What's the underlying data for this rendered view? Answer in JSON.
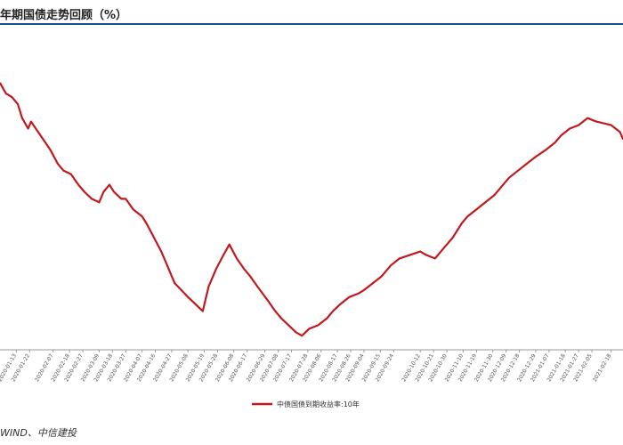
{
  "page": {
    "title": "年期国债走势回顾（%）",
    "source": "WIND、中信建投"
  },
  "chart_data": {
    "type": "line",
    "title": "年期国债走势回顾（%）",
    "legend": "中债国债到期收益率:10年",
    "legend_position": "bottom",
    "line_color": "#c0191e",
    "grid": false,
    "ylim": [
      2.4,
      3.3
    ],
    "x_ticks": [
      "2020-01-02",
      "2020-01-13",
      "2020-01-22",
      "2020-02-07",
      "2020-02-18",
      "2020-02-27",
      "2020-03-09",
      "2020-03-18",
      "2020-03-27",
      "2020-04-07",
      "2020-04-16",
      "2020-04-27",
      "2020-05-08",
      "2020-05-19",
      "2020-05-28",
      "2020-06-08",
      "2020-06-17",
      "2020-06-29",
      "2020-07-08",
      "2020-07-17",
      "2020-07-28",
      "2020-08-06",
      "2020-08-17",
      "2020-08-26",
      "2020-09-04",
      "2020-09-15",
      "2020-09-24",
      "2020-10-12",
      "2020-10-21",
      "2020-10-30",
      "2020-11-10",
      "2020-11-19",
      "2020-11-30",
      "2020-12-09",
      "2020-12-18",
      "2020-12-29",
      "2021-01-07",
      "2021-01-18",
      "2021-01-27",
      "2021-02-05",
      "2021-02-18",
      "2021-02-26"
    ],
    "x": [
      "2020-01-02",
      "2020-01-06",
      "2020-01-10",
      "2020-01-14",
      "2020-01-17",
      "2020-01-21",
      "2020-01-23",
      "2020-02-05",
      "2020-02-10",
      "2020-02-14",
      "2020-02-19",
      "2020-02-24",
      "2020-02-28",
      "2020-03-04",
      "2020-03-09",
      "2020-03-12",
      "2020-03-16",
      "2020-03-19",
      "2020-03-24",
      "2020-03-27",
      "2020-04-01",
      "2020-04-07",
      "2020-04-10",
      "2020-04-15",
      "2020-04-20",
      "2020-04-24",
      "2020-04-29",
      "2020-05-08",
      "2020-05-13",
      "2020-05-18",
      "2020-05-22",
      "2020-05-27",
      "2020-06-01",
      "2020-06-05",
      "2020-06-10",
      "2020-06-15",
      "2020-06-19",
      "2020-06-24",
      "2020-07-01",
      "2020-07-06",
      "2020-07-10",
      "2020-07-15",
      "2020-07-20",
      "2020-07-24",
      "2020-07-29",
      "2020-08-04",
      "2020-08-10",
      "2020-08-14",
      "2020-08-19",
      "2020-08-25",
      "2020-08-31",
      "2020-09-04",
      "2020-09-10",
      "2020-09-16",
      "2020-09-22",
      "2020-09-28",
      "2020-10-12",
      "2020-10-16",
      "2020-10-22",
      "2020-10-28",
      "2020-11-03",
      "2020-11-09",
      "2020-11-13",
      "2020-11-19",
      "2020-11-25",
      "2020-12-01",
      "2020-12-07",
      "2020-12-11",
      "2020-12-17",
      "2020-12-23",
      "2020-12-29",
      "2021-01-05",
      "2021-01-11",
      "2021-01-15",
      "2021-01-21",
      "2021-01-27",
      "2021-02-02",
      "2021-02-08",
      "2021-02-18",
      "2021-02-24",
      "2021-02-26"
    ],
    "values": [
      3.16,
      3.13,
      3.12,
      3.1,
      3.06,
      3.03,
      3.05,
      2.97,
      2.93,
      2.91,
      2.9,
      2.87,
      2.85,
      2.83,
      2.82,
      2.85,
      2.87,
      2.85,
      2.83,
      2.83,
      2.8,
      2.78,
      2.76,
      2.72,
      2.68,
      2.64,
      2.59,
      2.55,
      2.53,
      2.51,
      2.58,
      2.63,
      2.67,
      2.7,
      2.66,
      2.63,
      2.61,
      2.58,
      2.54,
      2.51,
      2.49,
      2.47,
      2.45,
      2.44,
      2.46,
      2.47,
      2.49,
      2.51,
      2.53,
      2.55,
      2.56,
      2.57,
      2.59,
      2.61,
      2.64,
      2.66,
      2.68,
      2.67,
      2.66,
      2.69,
      2.72,
      2.76,
      2.78,
      2.8,
      2.82,
      2.84,
      2.87,
      2.89,
      2.91,
      2.93,
      2.95,
      2.97,
      2.99,
      3.01,
      3.03,
      3.04,
      3.06,
      3.05,
      3.04,
      3.02,
      3.0
    ]
  }
}
